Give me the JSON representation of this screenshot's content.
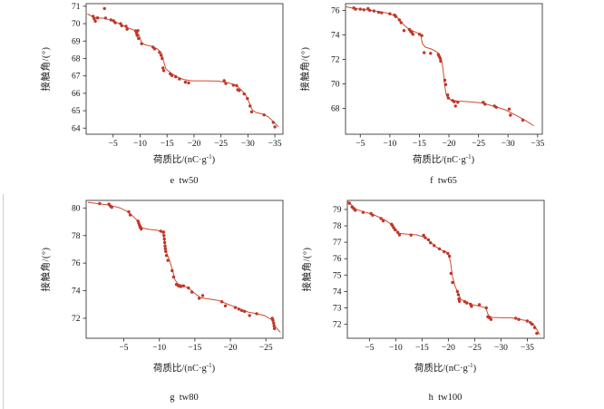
{
  "page": {
    "background": "#ffffff",
    "left_edge_line_color": "#cccccc",
    "axis_color": "#3a3a3a",
    "tick_label_color": "#111111"
  },
  "chart_data": [
    {
      "id": "e",
      "type": "scatter",
      "caption": "e  tw50",
      "xlabel": "荷质比/(nC·g⁻¹)",
      "xlabel_pre": "荷质比/(nC·g",
      "xlabel_sup": "-1",
      "xlabel_post": ")",
      "ylabel": "接触角/(°)",
      "x_ticks": [
        -5,
        -10,
        -15,
        -20,
        -25,
        -30,
        -35
      ],
      "y_ticks": [
        64,
        65,
        66,
        67,
        68,
        69,
        70,
        71
      ],
      "xlim": [
        0,
        -36.5
      ],
      "ylim": [
        63.65,
        71.15
      ],
      "grid": false,
      "legend": false,
      "point_color": "#bf3729",
      "line_color": "#cf4b33",
      "points": [
        [
          -1.3,
          70.42
        ],
        [
          -1.5,
          70.28
        ],
        [
          -1.7,
          70.14
        ],
        [
          -2.1,
          70.33
        ],
        [
          -3.4,
          70.87
        ],
        [
          -3.6,
          70.32
        ],
        [
          -4.6,
          70.22
        ],
        [
          -5.1,
          70.16
        ],
        [
          -5.4,
          70.05
        ],
        [
          -6.4,
          70.0
        ],
        [
          -6.6,
          69.88
        ],
        [
          -7.4,
          69.85
        ],
        [
          -7.6,
          69.68
        ],
        [
          -9.2,
          69.58
        ],
        [
          -9.35,
          69.45
        ],
        [
          -9.45,
          69.32
        ],
        [
          -9.6,
          69.6
        ],
        [
          -9.7,
          69.15
        ],
        [
          -10.3,
          68.85
        ],
        [
          -12.4,
          68.65
        ],
        [
          -12.7,
          68.55
        ],
        [
          -13.6,
          68.35
        ],
        [
          -13.9,
          68.18
        ],
        [
          -14.1,
          68.0
        ],
        [
          -14.25,
          67.45
        ],
        [
          -14.4,
          67.3
        ],
        [
          -15.6,
          67.12
        ],
        [
          -15.9,
          67.02
        ],
        [
          -16.6,
          66.95
        ],
        [
          -17.3,
          66.82
        ],
        [
          -18.4,
          66.64
        ],
        [
          -19.0,
          66.6
        ],
        [
          -25.6,
          66.73
        ],
        [
          -25.9,
          66.56
        ],
        [
          -27.3,
          66.47
        ],
        [
          -27.9,
          66.44
        ],
        [
          -28.1,
          66.2
        ],
        [
          -28.4,
          66.16
        ],
        [
          -29.3,
          65.96
        ],
        [
          -29.9,
          65.7
        ],
        [
          -30.4,
          65.27
        ],
        [
          -30.7,
          64.93
        ],
        [
          -33.0,
          64.76
        ],
        [
          -34.7,
          64.33
        ],
        [
          -35.0,
          64.07
        ]
      ],
      "line": [
        [
          -0.3,
          70.55
        ],
        [
          -1.5,
          70.35
        ],
        [
          -3.5,
          70.3
        ],
        [
          -5.0,
          70.15
        ],
        [
          -6.5,
          69.95
        ],
        [
          -7.6,
          69.78
        ],
        [
          -9.0,
          69.62
        ],
        [
          -9.8,
          69.35
        ],
        [
          -10.3,
          68.9
        ],
        [
          -11.0,
          68.78
        ],
        [
          -12.2,
          68.7
        ],
        [
          -13.2,
          68.55
        ],
        [
          -14.0,
          68.3
        ],
        [
          -14.4,
          67.8
        ],
        [
          -14.8,
          67.4
        ],
        [
          -15.8,
          67.15
        ],
        [
          -16.8,
          66.95
        ],
        [
          -18.0,
          66.8
        ],
        [
          -19.5,
          66.72
        ],
        [
          -22.0,
          66.72
        ],
        [
          -24.5,
          66.7
        ],
        [
          -26.5,
          66.6
        ],
        [
          -27.8,
          66.45
        ],
        [
          -28.6,
          66.25
        ],
        [
          -29.5,
          65.95
        ],
        [
          -30.2,
          65.5
        ],
        [
          -30.8,
          65.05
        ],
        [
          -31.5,
          64.9
        ],
        [
          -32.8,
          64.8
        ],
        [
          -33.8,
          64.65
        ],
        [
          -34.8,
          64.35
        ],
        [
          -35.6,
          64.1
        ]
      ]
    },
    {
      "id": "f",
      "type": "scatter",
      "caption": "f  tw65",
      "xlabel": "荷质比/(nC·g⁻¹)",
      "xlabel_pre": "荷质比/(nC·g",
      "xlabel_sup": "-1",
      "xlabel_post": ")",
      "ylabel": "接触角/(°)",
      "x_ticks": [
        -5,
        -10,
        -15,
        -20,
        -25,
        -30,
        -35
      ],
      "y_ticks": [
        68,
        70,
        72,
        74,
        76
      ],
      "xlim": [
        -2.5,
        -35.8
      ],
      "ylim": [
        65.9,
        76.55
      ],
      "grid": false,
      "legend": false,
      "point_color": "#bf3729",
      "line_color": "#cf4b33",
      "points": [
        [
          -3.9,
          76.2
        ],
        [
          -4.2,
          76.1
        ],
        [
          -5.0,
          76.1
        ],
        [
          -5.6,
          76.05
        ],
        [
          -6.3,
          76.15
        ],
        [
          -6.6,
          76.0
        ],
        [
          -7.3,
          75.95
        ],
        [
          -8.1,
          75.85
        ],
        [
          -8.6,
          75.8
        ],
        [
          -10.0,
          75.72
        ],
        [
          -10.8,
          75.62
        ],
        [
          -11.0,
          75.5
        ],
        [
          -11.6,
          75.22
        ],
        [
          -11.9,
          75.0
        ],
        [
          -12.4,
          74.35
        ],
        [
          -13.3,
          74.45
        ],
        [
          -13.5,
          74.3
        ],
        [
          -13.7,
          74.2
        ],
        [
          -13.9,
          74.05
        ],
        [
          -15.0,
          74.05
        ],
        [
          -15.4,
          73.95
        ],
        [
          -15.8,
          72.55
        ],
        [
          -16.9,
          72.5
        ],
        [
          -18.2,
          72.4
        ],
        [
          -18.35,
          72.25
        ],
        [
          -18.5,
          72.1
        ],
        [
          -18.6,
          71.85
        ],
        [
          -19.3,
          70.3
        ],
        [
          -19.45,
          69.95
        ],
        [
          -19.8,
          69.1
        ],
        [
          -19.9,
          68.85
        ],
        [
          -20.6,
          68.65
        ],
        [
          -20.9,
          68.55
        ],
        [
          -21.1,
          68.2
        ],
        [
          -21.5,
          68.5
        ],
        [
          -25.8,
          68.5
        ],
        [
          -26.1,
          68.35
        ],
        [
          -27.7,
          68.2
        ],
        [
          -28.0,
          68.1
        ],
        [
          -30.2,
          67.95
        ],
        [
          -30.4,
          67.45
        ],
        [
          -32.5,
          67.05
        ]
      ],
      "line": [
        [
          -2.5,
          76.3
        ],
        [
          -4.0,
          76.15
        ],
        [
          -6.0,
          76.05
        ],
        [
          -8.0,
          75.9
        ],
        [
          -9.5,
          75.78
        ],
        [
          -11.0,
          75.55
        ],
        [
          -11.8,
          75.15
        ],
        [
          -12.4,
          74.8
        ],
        [
          -13.0,
          74.55
        ],
        [
          -14.0,
          74.3
        ],
        [
          -15.2,
          74.05
        ],
        [
          -15.5,
          73.3
        ],
        [
          -16.0,
          73.0
        ],
        [
          -17.0,
          72.85
        ],
        [
          -18.0,
          72.6
        ],
        [
          -18.7,
          72.1
        ],
        [
          -19.0,
          71.2
        ],
        [
          -19.3,
          69.8
        ],
        [
          -19.6,
          69.0
        ],
        [
          -20.3,
          68.7
        ],
        [
          -21.5,
          68.6
        ],
        [
          -23.5,
          68.55
        ],
        [
          -25.5,
          68.45
        ],
        [
          -27.5,
          68.2
        ],
        [
          -29.5,
          67.9
        ],
        [
          -31.5,
          67.4
        ],
        [
          -33.0,
          67.0
        ],
        [
          -34.3,
          66.6
        ]
      ]
    },
    {
      "id": "g",
      "type": "scatter",
      "caption": "g  tw80",
      "xlabel": "荷质比/(nC·g⁻¹)",
      "xlabel_pre": "荷质比/(nC·g",
      "xlabel_sup": "-1",
      "xlabel_post": ")",
      "ylabel": "接触角/(°)",
      "x_ticks": [
        -5,
        -10,
        -15,
        -20,
        -25
      ],
      "y_ticks": [
        72,
        74,
        76,
        78,
        80
      ],
      "xlim": [
        0.3,
        -27.4
      ],
      "ylim": [
        70.55,
        80.55
      ],
      "grid": false,
      "legend": false,
      "point_color": "#bf3729",
      "line_color": "#cf4b33",
      "points": [
        [
          -1.6,
          80.32
        ],
        [
          -2.9,
          80.28
        ],
        [
          -3.1,
          80.15
        ],
        [
          -3.3,
          80.05
        ],
        [
          -5.7,
          79.72
        ],
        [
          -5.9,
          79.5
        ],
        [
          -7.0,
          79.05
        ],
        [
          -7.1,
          78.9
        ],
        [
          -7.2,
          78.75
        ],
        [
          -7.3,
          78.6
        ],
        [
          -7.45,
          78.48
        ],
        [
          -10.2,
          78.32
        ],
        [
          -10.6,
          78.25
        ],
        [
          -10.65,
          78.0
        ],
        [
          -10.7,
          77.75
        ],
        [
          -10.75,
          77.5
        ],
        [
          -10.8,
          77.25
        ],
        [
          -10.85,
          77.05
        ],
        [
          -10.9,
          76.85
        ],
        [
          -11.0,
          76.55
        ],
        [
          -11.2,
          76.2
        ],
        [
          -11.8,
          75.45
        ],
        [
          -12.0,
          75.0
        ],
        [
          -12.4,
          74.45
        ],
        [
          -12.7,
          74.35
        ],
        [
          -13.0,
          74.3
        ],
        [
          -13.4,
          74.35
        ],
        [
          -14.1,
          74.2
        ],
        [
          -14.6,
          73.9
        ],
        [
          -15.6,
          73.45
        ],
        [
          -16.1,
          73.65
        ],
        [
          -18.8,
          73.2
        ],
        [
          -19.3,
          72.9
        ],
        [
          -20.7,
          72.78
        ],
        [
          -21.2,
          72.66
        ],
        [
          -21.6,
          72.56
        ],
        [
          -22.0,
          72.5
        ],
        [
          -22.7,
          72.2
        ],
        [
          -23.7,
          72.33
        ],
        [
          -25.9,
          72.0
        ],
        [
          -26.0,
          71.85
        ],
        [
          -26.1,
          71.65
        ],
        [
          -26.15,
          71.45
        ],
        [
          -26.2,
          71.25
        ]
      ],
      "line": [
        [
          0.0,
          80.4
        ],
        [
          -1.6,
          80.3
        ],
        [
          -3.0,
          80.2
        ],
        [
          -4.5,
          80.0
        ],
        [
          -5.5,
          79.75
        ],
        [
          -6.3,
          79.4
        ],
        [
          -7.0,
          79.05
        ],
        [
          -7.6,
          78.55
        ],
        [
          -8.5,
          78.45
        ],
        [
          -9.8,
          78.38
        ],
        [
          -10.5,
          78.2
        ],
        [
          -10.8,
          77.4
        ],
        [
          -11.0,
          76.8
        ],
        [
          -11.5,
          76.1
        ],
        [
          -11.9,
          75.4
        ],
        [
          -12.2,
          74.8
        ],
        [
          -12.6,
          74.5
        ],
        [
          -13.5,
          74.35
        ],
        [
          -14.3,
          74.1
        ],
        [
          -15.0,
          73.8
        ],
        [
          -15.8,
          73.5
        ],
        [
          -17.0,
          73.4
        ],
        [
          -18.3,
          73.3
        ],
        [
          -19.5,
          73.05
        ],
        [
          -21.0,
          72.75
        ],
        [
          -22.5,
          72.45
        ],
        [
          -23.5,
          72.35
        ],
        [
          -24.8,
          72.2
        ],
        [
          -25.8,
          71.9
        ],
        [
          -26.3,
          71.4
        ],
        [
          -27.0,
          71.0
        ]
      ]
    },
    {
      "id": "h",
      "type": "scatter",
      "caption": "h  tw100",
      "xlabel": "荷质比/(nC·g⁻¹)",
      "xlabel_pre": "荷质比/(nC·g",
      "xlabel_sup": "-1",
      "xlabel_post": ")",
      "ylabel": "接触角/(°)",
      "x_ticks": [
        -5,
        -10,
        -15,
        -20,
        -25,
        -30,
        -35
      ],
      "y_ticks": [
        72,
        73,
        74,
        75,
        76,
        77,
        78,
        79
      ],
      "xlim": [
        -0.8,
        -38.2
      ],
      "ylim": [
        71.15,
        79.55
      ],
      "grid": false,
      "legend": false,
      "point_color": "#bf3729",
      "line_color": "#cf4b33",
      "points": [
        [
          -1.2,
          79.38
        ],
        [
          -1.7,
          79.15
        ],
        [
          -2.0,
          79.05
        ],
        [
          -2.3,
          78.95
        ],
        [
          -3.8,
          78.82
        ],
        [
          -5.3,
          78.75
        ],
        [
          -5.6,
          78.65
        ],
        [
          -7.2,
          78.45
        ],
        [
          -7.6,
          78.3
        ],
        [
          -9.2,
          78.1
        ],
        [
          -9.4,
          78.0
        ],
        [
          -9.6,
          77.88
        ],
        [
          -9.9,
          77.75
        ],
        [
          -10.4,
          77.6
        ],
        [
          -10.7,
          77.45
        ],
        [
          -12.9,
          77.44
        ],
        [
          -15.3,
          77.42
        ],
        [
          -15.6,
          77.28
        ],
        [
          -16.2,
          77.15
        ],
        [
          -16.6,
          76.97
        ],
        [
          -17.3,
          76.8
        ],
        [
          -18.3,
          76.6
        ],
        [
          -19.2,
          76.42
        ],
        [
          -19.9,
          76.32
        ],
        [
          -20.2,
          76.15
        ],
        [
          -20.5,
          75.1
        ],
        [
          -20.8,
          74.55
        ],
        [
          -21.7,
          74.0
        ],
        [
          -21.9,
          73.8
        ],
        [
          -22.0,
          73.55
        ],
        [
          -22.1,
          73.4
        ],
        [
          -23.1,
          73.38
        ],
        [
          -23.5,
          73.3
        ],
        [
          -24.2,
          73.22
        ],
        [
          -24.4,
          73.1
        ],
        [
          -25.9,
          73.2
        ],
        [
          -27.2,
          73.0
        ],
        [
          -27.5,
          72.46
        ],
        [
          -27.8,
          72.4
        ],
        [
          -28.1,
          72.3
        ],
        [
          -32.8,
          72.37
        ],
        [
          -33.4,
          72.3
        ],
        [
          -35.0,
          72.2
        ],
        [
          -35.6,
          72.1
        ],
        [
          -35.9,
          72.0
        ],
        [
          -36.4,
          71.8
        ],
        [
          -36.8,
          71.45
        ]
      ],
      "line": [
        [
          -0.8,
          79.5
        ],
        [
          -1.5,
          79.3
        ],
        [
          -2.5,
          79.0
        ],
        [
          -4.0,
          78.85
        ],
        [
          -5.5,
          78.72
        ],
        [
          -7.0,
          78.5
        ],
        [
          -8.0,
          78.35
        ],
        [
          -9.3,
          78.05
        ],
        [
          -10.0,
          77.8
        ],
        [
          -10.6,
          77.55
        ],
        [
          -12.0,
          77.5
        ],
        [
          -14.0,
          77.45
        ],
        [
          -15.5,
          77.3
        ],
        [
          -16.5,
          77.05
        ],
        [
          -17.5,
          76.75
        ],
        [
          -18.8,
          76.5
        ],
        [
          -20.0,
          76.35
        ],
        [
          -20.4,
          75.8
        ],
        [
          -20.8,
          74.9
        ],
        [
          -21.3,
          74.3
        ],
        [
          -22.0,
          73.8
        ],
        [
          -22.4,
          73.5
        ],
        [
          -23.3,
          73.4
        ],
        [
          -24.5,
          73.2
        ],
        [
          -26.0,
          73.1
        ],
        [
          -27.1,
          73.0
        ],
        [
          -27.6,
          72.55
        ],
        [
          -28.3,
          72.42
        ],
        [
          -30.0,
          72.4
        ],
        [
          -32.0,
          72.4
        ],
        [
          -33.5,
          72.3
        ],
        [
          -35.0,
          72.22
        ],
        [
          -36.2,
          72.0
        ],
        [
          -37.3,
          71.4
        ]
      ]
    }
  ]
}
